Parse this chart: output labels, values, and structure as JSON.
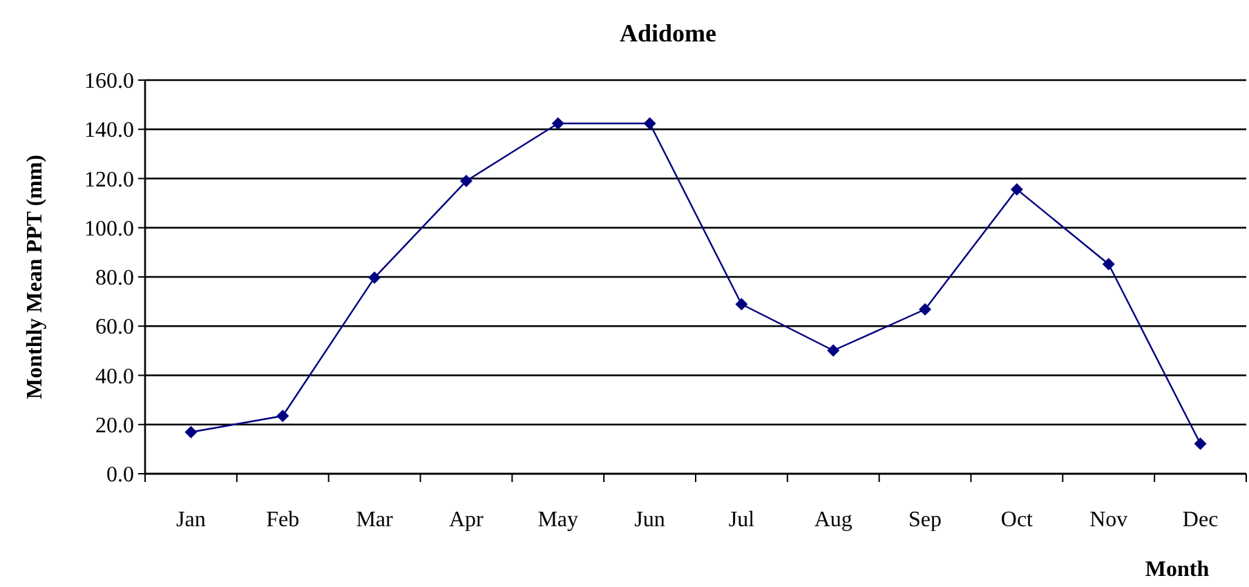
{
  "chart_data": {
    "type": "line",
    "title": "Adidome",
    "xlabel": "Month",
    "ylabel": "Monthly Mean PPT (mm)",
    "categories": [
      "Jan",
      "Feb",
      "Mar",
      "Apr",
      "May",
      "Jun",
      "Jul",
      "Aug",
      "Sep",
      "Oct",
      "Nov",
      "Dec"
    ],
    "series": [
      {
        "color": "#000080",
        "values": [
          16.9,
          23.5,
          79.7,
          119,
          142.4,
          142.4,
          68.9,
          50.1,
          66.8,
          115.6,
          85.2,
          12.2
        ]
      }
    ],
    "ylim": [
      0,
      160
    ],
    "yticks": [
      {
        "value": 0,
        "label": "0.0"
      },
      {
        "value": 20,
        "label": "20.0"
      },
      {
        "value": 40,
        "label": "40.0"
      },
      {
        "value": 60,
        "label": "60.0"
      },
      {
        "value": 80,
        "label": "80.0"
      },
      {
        "value": 100,
        "label": "100.0"
      },
      {
        "value": 120,
        "label": "120.0"
      },
      {
        "value": 140,
        "label": "140.0"
      },
      {
        "value": 160,
        "label": "160.0"
      }
    ],
    "grid": "y",
    "marker": "diamond",
    "line_style": "solid"
  }
}
